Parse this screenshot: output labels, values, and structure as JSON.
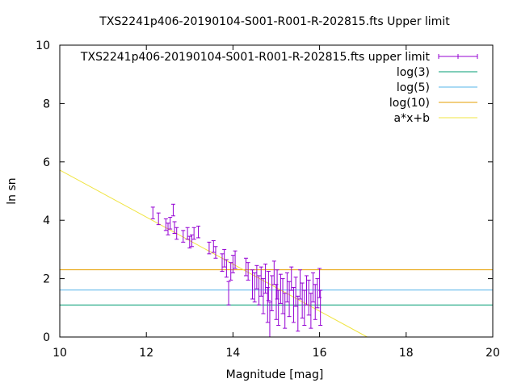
{
  "chart_data": {
    "type": "scatter",
    "title": "TXS2241p406-20190104-S001-R001-R-202815.fts Upper limit",
    "xlabel": "Magnitude [mag]",
    "ylabel": "ln sn",
    "xlim": [
      10,
      20
    ],
    "ylim": [
      0,
      10
    ],
    "x_ticks": [
      10,
      12,
      14,
      16,
      18,
      20
    ],
    "y_ticks": [
      0,
      2,
      4,
      6,
      8,
      10
    ],
    "grid": false,
    "legend_position": "top-right",
    "colors": {
      "points": "#9400d3",
      "log3": "#009e73",
      "log5": "#56b4e9",
      "log10": "#e69f00",
      "fit": "#f0e442"
    },
    "legend": [
      {
        "label": "TXS2241p406-20190104-S001-R001-R-202815.fts upper limit",
        "style": "errorbar",
        "color": "#9400d3"
      },
      {
        "label": "log(3)",
        "style": "line",
        "color": "#009e73"
      },
      {
        "label": "log(5)",
        "style": "line",
        "color": "#56b4e9"
      },
      {
        "label": "log(10)",
        "style": "line",
        "color": "#e69f00"
      },
      {
        "label": "a*x+b",
        "style": "line",
        "color": "#f0e442"
      }
    ],
    "hlines": [
      {
        "name": "log(3)",
        "value": 1.0986,
        "color": "#009e73"
      },
      {
        "name": "log(5)",
        "value": 1.6094,
        "color": "#56b4e9"
      },
      {
        "name": "log(10)",
        "value": 2.3026,
        "color": "#e69f00"
      }
    ],
    "fit_line": {
      "name": "a*x+b",
      "x": [
        10,
        17.1
      ],
      "y": [
        5.72,
        0.0
      ],
      "color": "#f0e442"
    },
    "series": [
      {
        "name": "TXS2241p406-20190104-S001-R001-R-202815.fts upper limit",
        "points": [
          {
            "x": 12.15,
            "y": 4.25,
            "err": 0.2
          },
          {
            "x": 12.28,
            "y": 4.05,
            "err": 0.2
          },
          {
            "x": 12.45,
            "y": 3.85,
            "err": 0.2
          },
          {
            "x": 12.5,
            "y": 3.7,
            "err": 0.2
          },
          {
            "x": 12.55,
            "y": 3.9,
            "err": 0.2
          },
          {
            "x": 12.62,
            "y": 4.35,
            "err": 0.2
          },
          {
            "x": 12.65,
            "y": 3.75,
            "err": 0.2
          },
          {
            "x": 12.7,
            "y": 3.55,
            "err": 0.2
          },
          {
            "x": 12.85,
            "y": 3.45,
            "err": 0.2
          },
          {
            "x": 12.95,
            "y": 3.55,
            "err": 0.2
          },
          {
            "x": 13.0,
            "y": 3.25,
            "err": 0.2
          },
          {
            "x": 13.05,
            "y": 3.3,
            "err": 0.2
          },
          {
            "x": 13.1,
            "y": 3.55,
            "err": 0.2
          },
          {
            "x": 13.2,
            "y": 3.6,
            "err": 0.2
          },
          {
            "x": 13.45,
            "y": 3.05,
            "err": 0.2
          },
          {
            "x": 13.55,
            "y": 3.1,
            "err": 0.2
          },
          {
            "x": 13.6,
            "y": 2.9,
            "err": 0.2
          },
          {
            "x": 13.75,
            "y": 2.55,
            "err": 0.3
          },
          {
            "x": 13.8,
            "y": 2.7,
            "err": 0.3
          },
          {
            "x": 13.85,
            "y": 2.35,
            "err": 0.3
          },
          {
            "x": 13.9,
            "y": 1.5,
            "err": 0.4
          },
          {
            "x": 13.95,
            "y": 2.25,
            "err": 0.3
          },
          {
            "x": 14.0,
            "y": 2.5,
            "err": 0.3
          },
          {
            "x": 14.05,
            "y": 2.65,
            "err": 0.3
          },
          {
            "x": 14.3,
            "y": 2.4,
            "err": 0.3
          },
          {
            "x": 14.35,
            "y": 2.25,
            "err": 0.3
          },
          {
            "x": 14.45,
            "y": 1.8,
            "err": 0.5
          },
          {
            "x": 14.5,
            "y": 1.7,
            "err": 0.5
          },
          {
            "x": 14.55,
            "y": 2.05,
            "err": 0.4
          },
          {
            "x": 14.6,
            "y": 1.6,
            "err": 0.5
          },
          {
            "x": 14.65,
            "y": 1.9,
            "err": 0.5
          },
          {
            "x": 14.7,
            "y": 1.4,
            "err": 0.6
          },
          {
            "x": 14.75,
            "y": 2.0,
            "err": 0.5
          },
          {
            "x": 14.8,
            "y": 1.1,
            "err": 0.6
          },
          {
            "x": 14.82,
            "y": 1.75,
            "err": 0.5
          },
          {
            "x": 14.85,
            "y": 0.6,
            "err": 0.6
          },
          {
            "x": 14.9,
            "y": 1.5,
            "err": 0.6
          },
          {
            "x": 14.95,
            "y": 2.2,
            "err": 0.4
          },
          {
            "x": 15.0,
            "y": 1.2,
            "err": 0.6
          },
          {
            "x": 15.02,
            "y": 1.8,
            "err": 0.5
          },
          {
            "x": 15.05,
            "y": 1.0,
            "err": 0.6
          },
          {
            "x": 15.1,
            "y": 1.65,
            "err": 0.5
          },
          {
            "x": 15.15,
            "y": 1.4,
            "err": 0.6
          },
          {
            "x": 15.2,
            "y": 0.9,
            "err": 0.6
          },
          {
            "x": 15.25,
            "y": 1.7,
            "err": 0.5
          },
          {
            "x": 15.3,
            "y": 1.3,
            "err": 0.6
          },
          {
            "x": 15.35,
            "y": 2.0,
            "err": 0.4
          },
          {
            "x": 15.4,
            "y": 1.1,
            "err": 0.6
          },
          {
            "x": 15.45,
            "y": 1.55,
            "err": 0.5
          },
          {
            "x": 15.5,
            "y": 0.8,
            "err": 0.6
          },
          {
            "x": 15.55,
            "y": 1.8,
            "err": 0.5
          },
          {
            "x": 15.6,
            "y": 1.25,
            "err": 0.6
          },
          {
            "x": 15.65,
            "y": 1.0,
            "err": 0.6
          },
          {
            "x": 15.7,
            "y": 1.6,
            "err": 0.5
          },
          {
            "x": 15.75,
            "y": 1.35,
            "err": 0.6
          },
          {
            "x": 15.8,
            "y": 0.9,
            "err": 0.6
          },
          {
            "x": 15.85,
            "y": 1.7,
            "err": 0.5
          },
          {
            "x": 15.9,
            "y": 1.2,
            "err": 0.6
          },
          {
            "x": 15.95,
            "y": 1.5,
            "err": 0.5
          },
          {
            "x": 16.0,
            "y": 1.85,
            "err": 0.5
          },
          {
            "x": 16.02,
            "y": 1.0,
            "err": 0.6
          }
        ]
      }
    ]
  }
}
